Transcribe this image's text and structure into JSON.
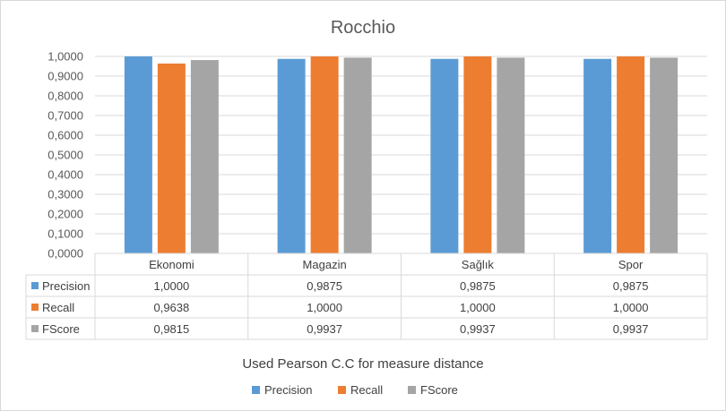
{
  "chart_data": {
    "type": "bar",
    "title": "Rocchio",
    "categories": [
      "Ekonomi",
      "Magazin",
      "Sağlık",
      "Spor"
    ],
    "series": [
      {
        "name": "Precision",
        "color": "#5b9bd5",
        "values": [
          1.0,
          0.9875,
          0.9875,
          0.9875
        ],
        "labels": [
          "1,0000",
          "0,9875",
          "0,9875",
          "0,9875"
        ]
      },
      {
        "name": "Recall",
        "color": "#ed7d31",
        "values": [
          0.9638,
          1.0,
          1.0,
          1.0
        ],
        "labels": [
          "0,9638",
          "1,0000",
          "1,0000",
          "1,0000"
        ]
      },
      {
        "name": "FScore",
        "color": "#a5a5a5",
        "values": [
          0.9815,
          0.9937,
          0.9937,
          0.9937
        ],
        "labels": [
          "0,9815",
          "0,9937",
          "0,9937",
          "0,9937"
        ]
      }
    ],
    "ylim": [
      0,
      1.0
    ],
    "yticks": [
      "0,0000",
      "0,1000",
      "0,2000",
      "0,3000",
      "0,4000",
      "0,5000",
      "0,6000",
      "0,7000",
      "0,8000",
      "0,9000",
      "1,0000"
    ],
    "xlabel": "Used Pearson C.C for measure distance",
    "grid": true,
    "legend_position": "bottom",
    "data_table": true
  }
}
